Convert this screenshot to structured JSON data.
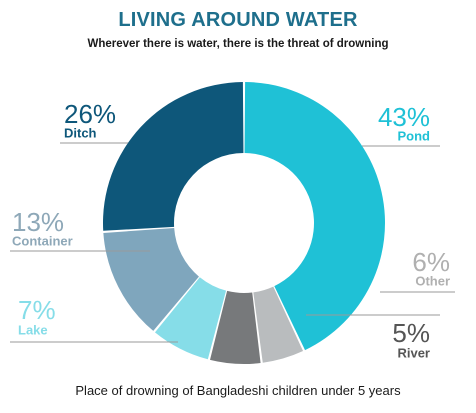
{
  "header": {
    "title": "LIVING AROUND WATER",
    "subtitle": "Wherever there is water, there is the threat of drowning"
  },
  "footer": {
    "caption": "Place of drowning of Bangladeshi children under 5 years"
  },
  "colors": {
    "title": "#1e6f8c",
    "text": "#1a1a1a",
    "leader": "#9a9a9a"
  },
  "chart_data": {
    "type": "pie",
    "variant": "donut",
    "title": "LIVING AROUND WATER",
    "subtitle": "Wherever there is water, there is the threat of drowning",
    "caption": "Place of drowning of Bangladeshi children under 5 years",
    "unit": "%",
    "start_angle_deg": 0,
    "direction": "clockwise",
    "slices": [
      {
        "name": "Pond",
        "value": 43,
        "label": "43%",
        "color": "#1fc1d6"
      },
      {
        "name": "River",
        "value": 5,
        "label": "5%",
        "color": "#b9bcbe"
      },
      {
        "name": "Other",
        "value": 6,
        "label": "6%",
        "color": "#77797b"
      },
      {
        "name": "Lake",
        "value": 7,
        "label": "7%",
        "color": "#86dde8"
      },
      {
        "name": "Container",
        "value": 13,
        "label": "13%",
        "color": "#7fa6bd"
      },
      {
        "name": "Ditch",
        "value": 26,
        "label": "26%",
        "color": "#0e577a"
      }
    ],
    "label_colors": {
      "Pond": "#1fc1d6",
      "River": "#555555",
      "Other": "#b0b0b0",
      "Lake": "#86dde8",
      "Container": "#8ea8b8",
      "Ditch": "#0e577a"
    }
  }
}
